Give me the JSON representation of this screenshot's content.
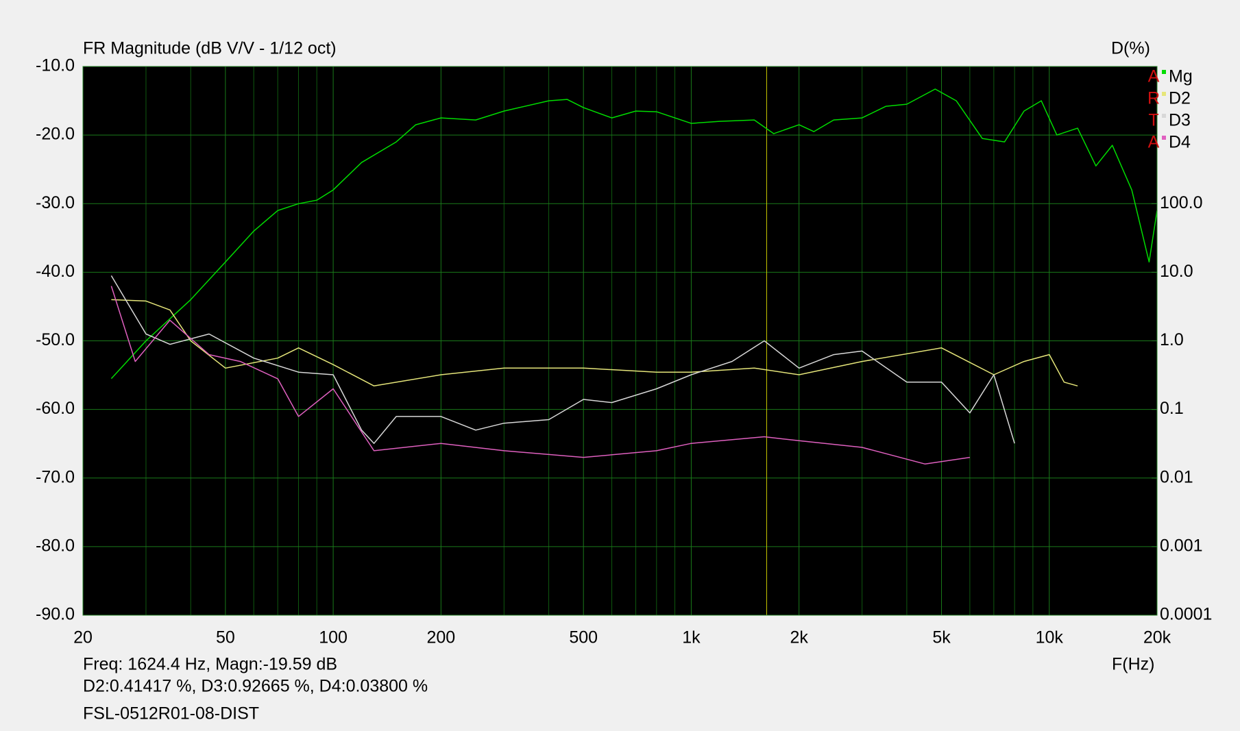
{
  "chart_data": {
    "type": "line",
    "title": "FR Magnitude (dB V/V - 1/12 oct)",
    "y2_title": "D(%)",
    "x_title": "F(Hz)",
    "watermark": [
      "A",
      "R",
      "T",
      "A"
    ],
    "cursor": {
      "x": 1624.4,
      "color": "#c8c800",
      "lines": [
        "Freq: 1624.4 Hz, Magn:-19.59 dB",
        "D2:0.41417 %, D3:0.92665 %, D4:0.03800 %"
      ]
    },
    "footer": "FSL-0512R01-08-DIST",
    "xlim": [
      20,
      20000
    ],
    "xlog": true,
    "xticks": [
      20,
      50,
      100,
      200,
      500,
      {
        "value": 1000,
        "label": "1k"
      },
      {
        "value": 2000,
        "label": "2k"
      },
      {
        "value": 5000,
        "label": "5k"
      },
      {
        "value": 10000,
        "label": "10k"
      },
      {
        "value": 20000,
        "label": "20k"
      }
    ],
    "xgrid": [
      30,
      40,
      60,
      70,
      80,
      90,
      300,
      400,
      600,
      700,
      800,
      900,
      3000,
      4000,
      6000,
      7000,
      8000,
      9000
    ],
    "ylim": [
      -90,
      -10
    ],
    "yticks": [
      {
        "value": -90,
        "label": "-90.0"
      },
      {
        "value": -80,
        "label": "-80.0"
      },
      {
        "value": -70,
        "label": "-70.0"
      },
      {
        "value": -60,
        "label": "-60.0"
      },
      {
        "value": -50,
        "label": "-50.0"
      },
      {
        "value": -40,
        "label": "-40.0"
      },
      {
        "value": -30,
        "label": "-30.0"
      },
      {
        "value": -20,
        "label": "-20.0"
      },
      {
        "value": -10,
        "label": "-10.0"
      }
    ],
    "y2lim": [
      0.0001,
      10000
    ],
    "y2log": true,
    "y2ticks": [
      0.0001,
      0.001,
      0.01,
      0.1,
      {
        "value": 1,
        "label": "1.0"
      },
      {
        "value": 10,
        "label": "10.0"
      },
      {
        "value": 100,
        "label": "100.0"
      }
    ],
    "grid": true,
    "series": [
      {
        "name": "Mg",
        "color": "#00dd00",
        "x": [
          24,
          30,
          40,
          50,
          60,
          70,
          80,
          90,
          100,
          120,
          150,
          170,
          200,
          250,
          300,
          400,
          450,
          500,
          600,
          700,
          800,
          1000,
          1200,
          1500,
          1700,
          2000,
          2200,
          2500,
          3000,
          3500,
          4000,
          4800,
          5500,
          6500,
          7500,
          8500,
          9500,
          10500,
          12000,
          13500,
          15000,
          17000,
          19000,
          20000
        ],
        "values": [
          -55.5,
          -50,
          -44,
          -38.5,
          -34,
          -31,
          -30,
          -29.5,
          -28,
          -24,
          -21,
          -18.5,
          -17.5,
          -17.8,
          -16.5,
          -15,
          -14.8,
          -16,
          -17.5,
          -16.5,
          -16.6,
          -18.3,
          -18,
          -17.8,
          -19.8,
          -18.5,
          -19.5,
          -17.8,
          -17.5,
          -15.8,
          -15.5,
          -13.3,
          -15,
          -20.5,
          -21,
          -16.5,
          -15,
          -20,
          -19,
          -24.5,
          -21.5,
          -28,
          -38.5,
          -31
        ]
      },
      {
        "name": "D2",
        "color": "#e6e67a",
        "axis": "y2",
        "x": [
          24,
          30,
          35,
          40,
          50,
          70,
          80,
          100,
          130,
          200,
          300,
          500,
          800,
          1000,
          1500,
          2000,
          3000,
          5000,
          7000,
          8500,
          10000,
          11000,
          12000
        ],
        "values": [
          3.98,
          3.8,
          2.82,
          1.0,
          0.4,
          0.56,
          0.79,
          0.45,
          0.22,
          0.32,
          0.4,
          0.4,
          0.35,
          0.35,
          0.4,
          0.32,
          0.5,
          0.79,
          0.32,
          0.5,
          0.63,
          0.25,
          0.22
        ]
      },
      {
        "name": "D3",
        "color": "#d8d8d8",
        "axis": "y2",
        "x": [
          24,
          30,
          35,
          45,
          60,
          80,
          100,
          120,
          130,
          150,
          200,
          250,
          300,
          400,
          500,
          600,
          800,
          1000,
          1300,
          1600,
          2000,
          2500,
          3000,
          4000,
          5000,
          6000,
          7000,
          8000
        ],
        "values": [
          8.9,
          1.26,
          0.89,
          1.26,
          0.56,
          0.35,
          0.32,
          0.05,
          0.032,
          0.079,
          0.079,
          0.05,
          0.063,
          0.071,
          0.14,
          0.126,
          0.2,
          0.32,
          0.5,
          1.0,
          0.4,
          0.63,
          0.71,
          0.25,
          0.25,
          0.089,
          0.32,
          0.032
        ]
      },
      {
        "name": "D4",
        "color": "#e060c0",
        "axis": "y2",
        "x": [
          24,
          28,
          35,
          45,
          55,
          70,
          80,
          100,
          130,
          200,
          300,
          500,
          800,
          1000,
          1600,
          2000,
          3000,
          4500,
          6000
        ],
        "values": [
          6.3,
          0.5,
          2.0,
          0.63,
          0.5,
          0.28,
          0.079,
          0.2,
          0.025,
          0.032,
          0.025,
          0.02,
          0.025,
          0.032,
          0.04,
          0.035,
          0.028,
          0.016,
          0.02
        ]
      }
    ]
  }
}
